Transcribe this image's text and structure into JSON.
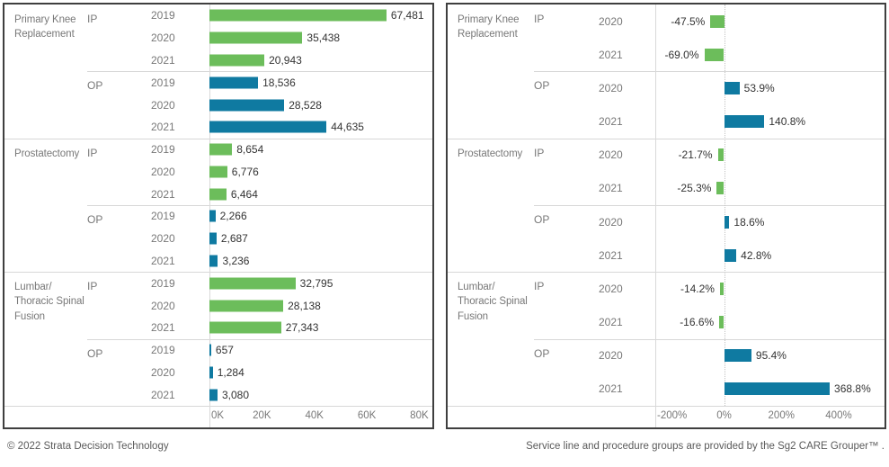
{
  "footer": {
    "copyright": "© 2022 Strata Decision Technology",
    "attribution": "Service line and procedure groups are provided by the Sg2 CARE Grouper™ ."
  },
  "colors": {
    "ip_green": "#6cbd5b",
    "op_blue": "#0f7aa1"
  },
  "chart_data": [
    {
      "id": "volume-by-year",
      "type": "bar",
      "orientation": "horizontal",
      "legend": "none",
      "grid": "off",
      "xlim": [
        0,
        85000
      ],
      "x_ticks": [
        {
          "label": "0K",
          "value": 0
        },
        {
          "label": "20K",
          "value": 20000
        },
        {
          "label": "40K",
          "value": 40000
        },
        {
          "label": "60K",
          "value": 60000
        },
        {
          "label": "80K",
          "value": 80000
        }
      ],
      "zero_line": false,
      "groups": [
        {
          "procedure": "Primary Knee\nReplacement",
          "subgroups": [
            {
              "patient_class": "IP",
              "color_key": "ip_green",
              "rows": [
                {
                  "year": "2019",
                  "value": 67481,
                  "label": "67,481"
                },
                {
                  "year": "2020",
                  "value": 35438,
                  "label": "35,438"
                },
                {
                  "year": "2021",
                  "value": 20943,
                  "label": "20,943"
                }
              ]
            },
            {
              "patient_class": "OP",
              "color_key": "op_blue",
              "rows": [
                {
                  "year": "2019",
                  "value": 18536,
                  "label": "18,536"
                },
                {
                  "year": "2020",
                  "value": 28528,
                  "label": "28,528"
                },
                {
                  "year": "2021",
                  "value": 44635,
                  "label": "44,635"
                }
              ]
            }
          ]
        },
        {
          "procedure": "Prostatectomy",
          "subgroups": [
            {
              "patient_class": "IP",
              "color_key": "ip_green",
              "rows": [
                {
                  "year": "2019",
                  "value": 8654,
                  "label": "8,654"
                },
                {
                  "year": "2020",
                  "value": 6776,
                  "label": "6,776"
                },
                {
                  "year": "2021",
                  "value": 6464,
                  "label": "6,464"
                }
              ]
            },
            {
              "patient_class": "OP",
              "color_key": "op_blue",
              "rows": [
                {
                  "year": "2019",
                  "value": 2266,
                  "label": "2,266"
                },
                {
                  "year": "2020",
                  "value": 2687,
                  "label": "2,687"
                },
                {
                  "year": "2021",
                  "value": 3236,
                  "label": "3,236"
                }
              ]
            }
          ]
        },
        {
          "procedure": "Lumbar/\nThoracic Spinal\nFusion",
          "subgroups": [
            {
              "patient_class": "IP",
              "color_key": "ip_green",
              "rows": [
                {
                  "year": "2019",
                  "value": 32795,
                  "label": "32,795"
                },
                {
                  "year": "2020",
                  "value": 28138,
                  "label": "28,138"
                },
                {
                  "year": "2021",
                  "value": 27343,
                  "label": "27,343"
                }
              ]
            },
            {
              "patient_class": "OP",
              "color_key": "op_blue",
              "rows": [
                {
                  "year": "2019",
                  "value": 657,
                  "label": "657"
                },
                {
                  "year": "2020",
                  "value": 1284,
                  "label": "1,284"
                },
                {
                  "year": "2021",
                  "value": 3080,
                  "label": "3,080"
                }
              ]
            }
          ]
        }
      ]
    },
    {
      "id": "percent-change",
      "type": "bar",
      "orientation": "horizontal",
      "legend": "none",
      "grid": "off",
      "xlim": [
        -240,
        560
      ],
      "x_ticks": [
        {
          "label": "-200%",
          "value": -200
        },
        {
          "label": "0%",
          "value": 0
        },
        {
          "label": "200%",
          "value": 200
        },
        {
          "label": "400%",
          "value": 400
        }
      ],
      "zero_line": true,
      "groups": [
        {
          "procedure": "Primary Knee\nReplacement",
          "subgroups": [
            {
              "patient_class": "IP",
              "color_key": "ip_green",
              "rows": [
                {
                  "year": "2020",
                  "value": -47.5,
                  "label": "-47.5%"
                },
                {
                  "year": "2021",
                  "value": -69.0,
                  "label": "-69.0%"
                }
              ]
            },
            {
              "patient_class": "OP",
              "color_key": "op_blue",
              "rows": [
                {
                  "year": "2020",
                  "value": 53.9,
                  "label": "53.9%"
                },
                {
                  "year": "2021",
                  "value": 140.8,
                  "label": "140.8%"
                }
              ]
            }
          ]
        },
        {
          "procedure": "Prostatectomy",
          "subgroups": [
            {
              "patient_class": "IP",
              "color_key": "ip_green",
              "rows": [
                {
                  "year": "2020",
                  "value": -21.7,
                  "label": "-21.7%"
                },
                {
                  "year": "2021",
                  "value": -25.3,
                  "label": "-25.3%"
                }
              ]
            },
            {
              "patient_class": "OP",
              "color_key": "op_blue",
              "rows": [
                {
                  "year": "2020",
                  "value": 18.6,
                  "label": "18.6%"
                },
                {
                  "year": "2021",
                  "value": 42.8,
                  "label": "42.8%"
                }
              ]
            }
          ]
        },
        {
          "procedure": "Lumbar/\nThoracic Spinal\nFusion",
          "subgroups": [
            {
              "patient_class": "IP",
              "color_key": "ip_green",
              "rows": [
                {
                  "year": "2020",
                  "value": -14.2,
                  "label": "-14.2%"
                },
                {
                  "year": "2021",
                  "value": -16.6,
                  "label": "-16.6%"
                }
              ]
            },
            {
              "patient_class": "OP",
              "color_key": "op_blue",
              "rows": [
                {
                  "year": "2020",
                  "value": 95.4,
                  "label": "95.4%"
                },
                {
                  "year": "2021",
                  "value": 368.8,
                  "label": "368.8%"
                }
              ]
            }
          ]
        }
      ]
    }
  ]
}
